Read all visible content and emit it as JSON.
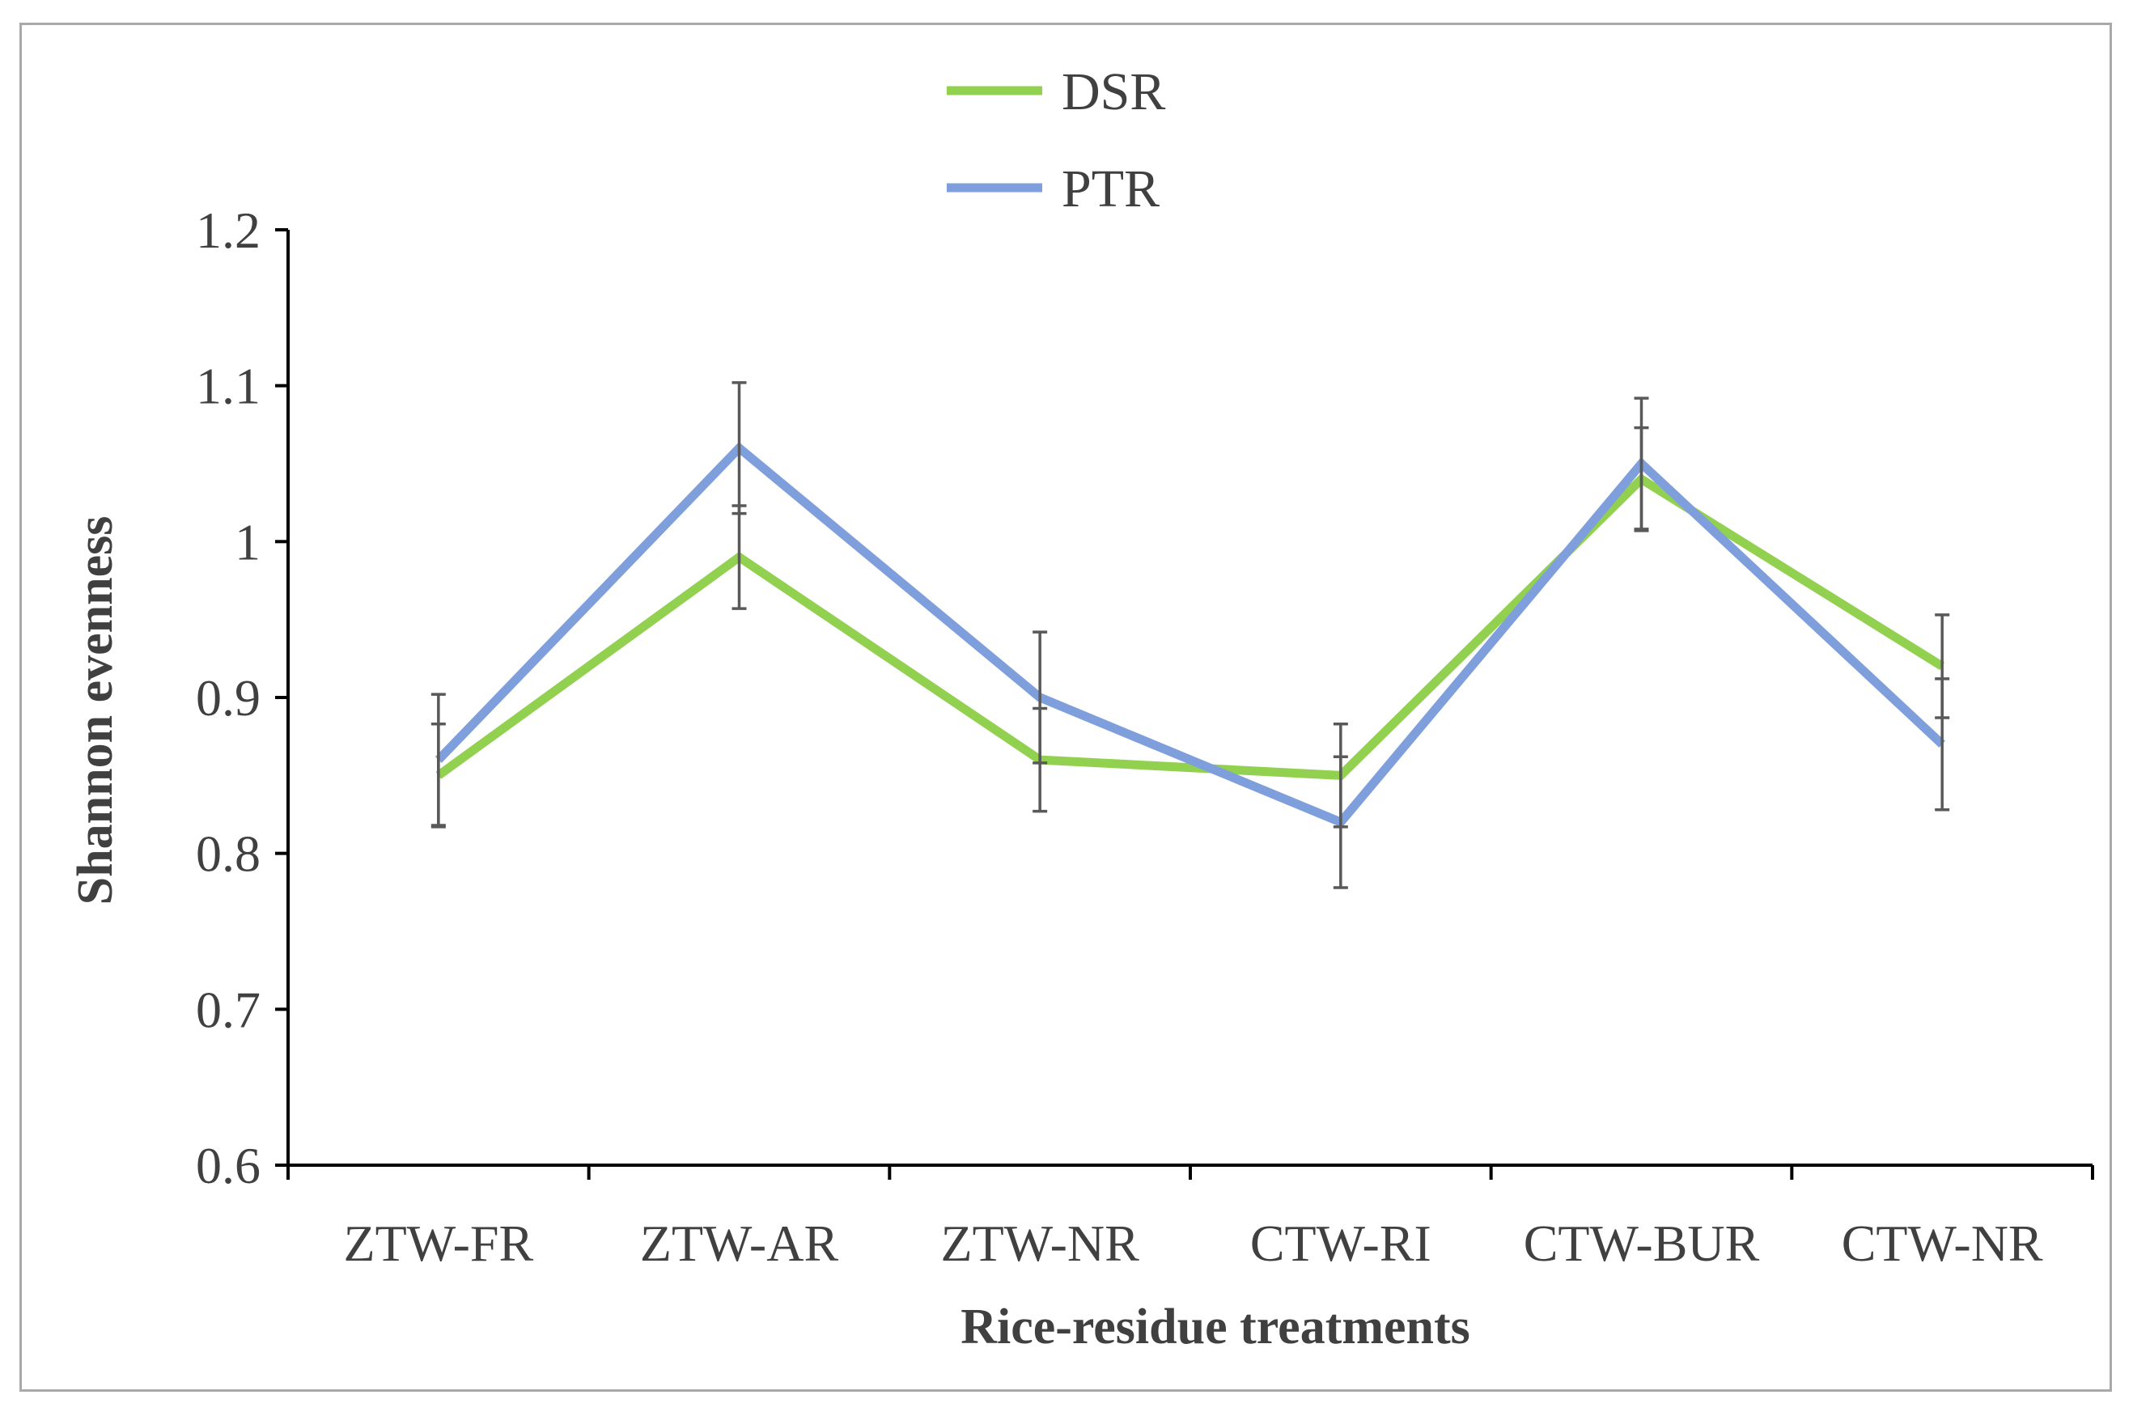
{
  "chart_data": {
    "type": "line",
    "title": "",
    "xlabel": "Rice-residue treatments",
    "ylabel": "Shannon evenness",
    "categories": [
      "ZTW-FR",
      "ZTW-AR",
      "ZTW-NR",
      "CTW-RI",
      "CTW-BUR",
      "CTW-NR"
    ],
    "ylim": [
      0.6,
      1.2
    ],
    "yticks": [
      "0.6",
      "0.7",
      "0.8",
      "0.9",
      "1",
      "1.1",
      "1.2"
    ],
    "grid": false,
    "legend_position": "top-center",
    "series": [
      {
        "name": "DSR",
        "color": "#92d050",
        "values": [
          0.85,
          0.99,
          0.86,
          0.85,
          1.04,
          0.92
        ],
        "errors": [
          0.033,
          0.033,
          0.033,
          0.033,
          0.033,
          0.033
        ]
      },
      {
        "name": "PTR",
        "color": "#7f9fdc",
        "values": [
          0.86,
          1.06,
          0.9,
          0.82,
          1.05,
          0.87
        ],
        "errors": [
          0.042,
          0.042,
          0.042,
          0.042,
          0.042,
          0.042
        ]
      }
    ],
    "error_bar_color": "#595959"
  }
}
